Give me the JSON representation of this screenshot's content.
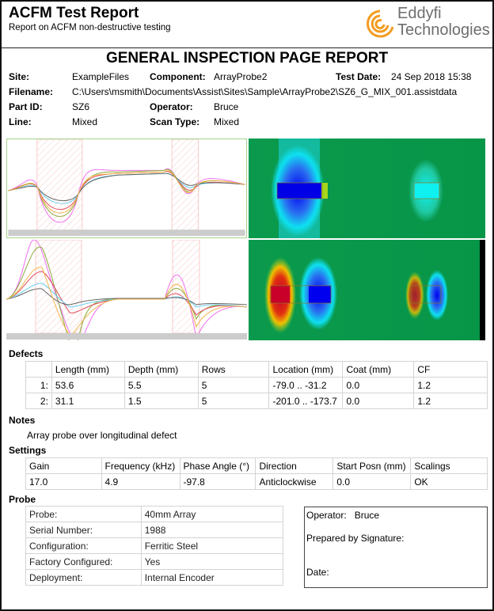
{
  "header": {
    "title": "ACFM Test Report",
    "subtitle": "Report on ACFM non-destructive testing",
    "logo_line1": "Eddyfi",
    "logo_line2": "Technologies",
    "brand_color": "#f39c1f"
  },
  "report_title": "GENERAL INSPECTION PAGE REPORT",
  "info": {
    "site_label": "Site:",
    "site": "ExampleFiles",
    "component_label": "Component:",
    "component": "ArrayProbe2",
    "test_date_label": "Test Date:",
    "test_date": "24 Sep 2018 15:38",
    "filename_label": "Filename:",
    "filename": "C:\\Users\\msmith\\Documents\\Assist\\Sites\\Sample\\ArrayProbe2\\SZ6_G_MIX_001.assistdata",
    "part_id_label": "Part ID:",
    "part_id": "SZ6",
    "operator_label": "Operator:",
    "operator": "Bruce",
    "line_label": "Line:",
    "line": "Mixed",
    "scan_type_label": "Scan Type:",
    "scan_type": "Mixed"
  },
  "defects": {
    "title": "Defects",
    "headers": [
      "",
      "Length (mm)",
      "Depth (mm)",
      "Rows",
      "Location (mm)",
      "Coat (mm)",
      "CF"
    ],
    "rows": [
      [
        "1:",
        "53.6",
        "5.5",
        "5",
        "-79.0 .. -31.2",
        "0.0",
        "1.2"
      ],
      [
        "2:",
        "31.1",
        "1.5",
        "5",
        "-201.0 .. -173.7",
        "0.0",
        "1.2"
      ]
    ]
  },
  "notes": {
    "title": "Notes",
    "text": "Array probe over longitudinal defect"
  },
  "settings": {
    "title": "Settings",
    "headers": [
      "Gain",
      "Frequency (kHz)",
      "Phase Angle (°)",
      "Direction",
      "Start Posn (mm)",
      "Scalings"
    ],
    "values": [
      "17.0",
      "4.9",
      "-97.8",
      "Anticlockwise",
      "0.0",
      "OK"
    ]
  },
  "probe": {
    "title": "Probe",
    "rows": [
      [
        "Probe:",
        "40mm Array"
      ],
      [
        "Serial Number:",
        "1988"
      ],
      [
        "Configuration:",
        "Ferritic Steel"
      ],
      [
        "Factory Configured:",
        "Yes"
      ],
      [
        "Deployment:",
        "Internal Encoder"
      ]
    ]
  },
  "signature": {
    "operator_label": "Operator:",
    "operator": "Bruce",
    "prepared_label": "Prepared by Signature:",
    "date_label": "Date:"
  }
}
